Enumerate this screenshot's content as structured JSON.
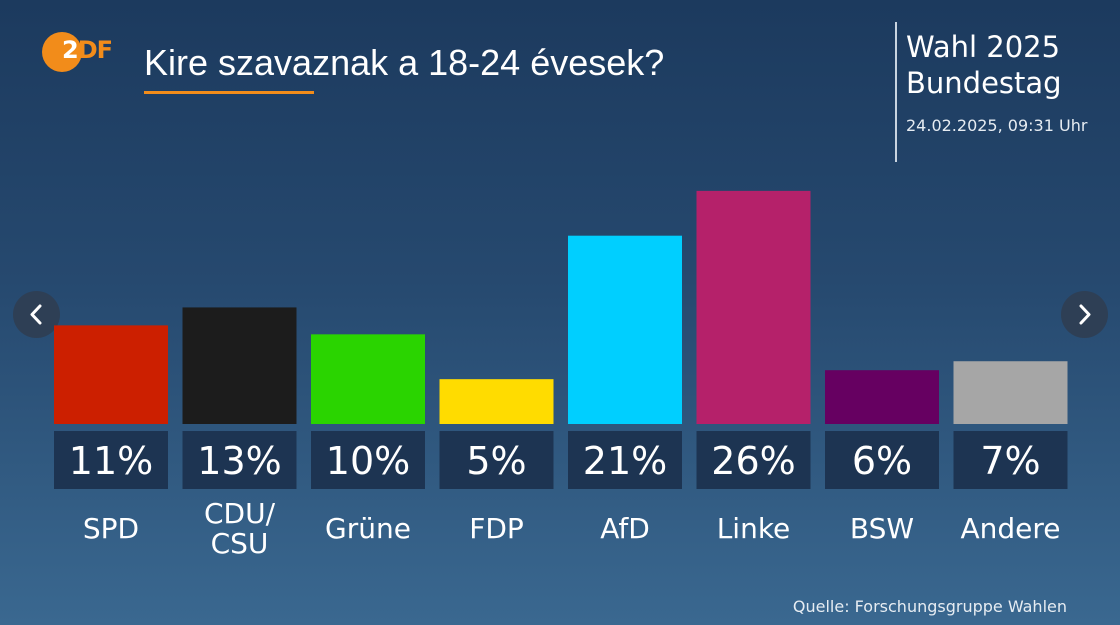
{
  "header": {
    "logo_text_first": "2",
    "logo_text_rest": "DF",
    "title": "Kire szavaznak a 18-24 évesek?",
    "brand_line1": "Wahl 2025",
    "brand_line2": "Bundestag",
    "timestamp": "24.02.2025, 09:31 Uhr"
  },
  "navigation": {
    "prev_icon": "chevron-left-icon",
    "next_icon": "chevron-right-icon"
  },
  "footer": {
    "source": "Quelle: Forschungsgruppe Wahlen"
  },
  "chart_data": {
    "type": "bar",
    "title": "Kire szavaznak a 18-24 évesek?",
    "xlabel": "",
    "ylabel": "",
    "ylim": [
      0,
      30
    ],
    "grid": false,
    "legend": "none",
    "categories": [
      "SPD",
      "CDU/\nCSU",
      "Grüne",
      "FDP",
      "AfD",
      "Linke",
      "BSW",
      "Andere"
    ],
    "values": [
      11,
      13,
      10,
      5,
      21,
      26,
      6,
      7
    ],
    "value_labels": [
      "11%",
      "13%",
      "10%",
      "5%",
      "21%",
      "26%",
      "6%",
      "7%"
    ],
    "colors": [
      "#cc1f00",
      "#1c1c1c",
      "#2ad400",
      "#ffdc00",
      "#00cfff",
      "#b5216a",
      "#660061",
      "#a6a6a6"
    ],
    "label_box_color": "#1d3452"
  }
}
